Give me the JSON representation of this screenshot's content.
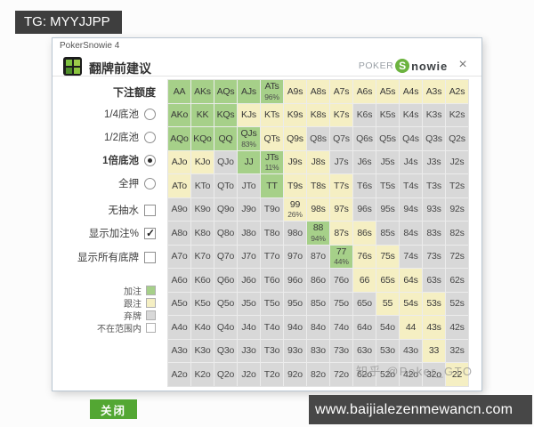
{
  "page": {
    "top_banner": "TG: MYYJJPP",
    "bottom_banner": "www.baijialezenmewancn.com",
    "watermark": "知乎 @Poker_GTO"
  },
  "window": {
    "title": "PokerSnowie 4",
    "dialog_title": "翻牌前建议",
    "logo": {
      "poker": "POKER",
      "s": "S",
      "nowie": "nowie"
    },
    "close_glyph": "×"
  },
  "sidebar": {
    "bet_header": "下注额度",
    "radios": [
      {
        "label": "1/4底池",
        "selected": false
      },
      {
        "label": "1/2底池",
        "selected": false
      },
      {
        "label": "1倍底池",
        "selected": true
      },
      {
        "label": "全押",
        "selected": false
      }
    ],
    "checkboxes": [
      {
        "label": "无抽水",
        "checked": false
      },
      {
        "label": "显示加注%",
        "checked": true
      },
      {
        "label": "显示所有底牌",
        "checked": false
      }
    ],
    "legend": [
      {
        "label": "加注",
        "color": "#a6d089"
      },
      {
        "label": "跟注",
        "color": "#f5efc3"
      },
      {
        "label": "弃牌",
        "color": "#d8d8d8"
      },
      {
        "label": "不在范围内",
        "color": "#ffffff"
      }
    ],
    "close_button": "关闭"
  },
  "colors": {
    "raise": "#a6d089",
    "call": "#f5efc3",
    "fold": "#d8d8d8",
    "accent_green": "#53a733"
  },
  "grid": {
    "actions": {
      "R": "raise",
      "C": "call",
      "F": "fold"
    },
    "rows": [
      [
        [
          "AA",
          "R"
        ],
        [
          "AKs",
          "R"
        ],
        [
          "AQs",
          "R"
        ],
        [
          "AJs",
          "R"
        ],
        [
          "ATs",
          "R",
          "96%"
        ],
        [
          "A9s",
          "C"
        ],
        [
          "A8s",
          "C"
        ],
        [
          "A7s",
          "C"
        ],
        [
          "A6s",
          "C"
        ],
        [
          "A5s",
          "C"
        ],
        [
          "A4s",
          "C"
        ],
        [
          "A3s",
          "C"
        ],
        [
          "A2s",
          "C"
        ]
      ],
      [
        [
          "AKo",
          "R"
        ],
        [
          "KK",
          "R"
        ],
        [
          "KQs",
          "R"
        ],
        [
          "KJs",
          "C"
        ],
        [
          "KTs",
          "C"
        ],
        [
          "K9s",
          "C"
        ],
        [
          "K8s",
          "C"
        ],
        [
          "K7s",
          "C"
        ],
        [
          "K6s",
          "F"
        ],
        [
          "K5s",
          "F"
        ],
        [
          "K4s",
          "F"
        ],
        [
          "K3s",
          "F"
        ],
        [
          "K2s",
          "F"
        ]
      ],
      [
        [
          "AQo",
          "R"
        ],
        [
          "KQo",
          "R"
        ],
        [
          "QQ",
          "R"
        ],
        [
          "QJs",
          "R",
          "83%"
        ],
        [
          "QTs",
          "C"
        ],
        [
          "Q9s",
          "C"
        ],
        [
          "Q8s",
          "F"
        ],
        [
          "Q7s",
          "F"
        ],
        [
          "Q6s",
          "F"
        ],
        [
          "Q5s",
          "F"
        ],
        [
          "Q4s",
          "F"
        ],
        [
          "Q3s",
          "F"
        ],
        [
          "Q2s",
          "F"
        ]
      ],
      [
        [
          "AJo",
          "C"
        ],
        [
          "KJo",
          "C"
        ],
        [
          "QJo",
          "F"
        ],
        [
          "JJ",
          "R"
        ],
        [
          "JTs",
          "R",
          "11%"
        ],
        [
          "J9s",
          "C"
        ],
        [
          "J8s",
          "C"
        ],
        [
          "J7s",
          "F"
        ],
        [
          "J6s",
          "F"
        ],
        [
          "J5s",
          "F"
        ],
        [
          "J4s",
          "F"
        ],
        [
          "J3s",
          "F"
        ],
        [
          "J2s",
          "F"
        ]
      ],
      [
        [
          "ATo",
          "C"
        ],
        [
          "KTo",
          "F"
        ],
        [
          "QTo",
          "F"
        ],
        [
          "JTo",
          "F"
        ],
        [
          "TT",
          "R"
        ],
        [
          "T9s",
          "C"
        ],
        [
          "T8s",
          "C"
        ],
        [
          "T7s",
          "C"
        ],
        [
          "T6s",
          "F"
        ],
        [
          "T5s",
          "F"
        ],
        [
          "T4s",
          "F"
        ],
        [
          "T3s",
          "F"
        ],
        [
          "T2s",
          "F"
        ]
      ],
      [
        [
          "A9o",
          "F"
        ],
        [
          "K9o",
          "F"
        ],
        [
          "Q9o",
          "F"
        ],
        [
          "J9o",
          "F"
        ],
        [
          "T9o",
          "F"
        ],
        [
          "99",
          "C",
          "26%"
        ],
        [
          "98s",
          "C"
        ],
        [
          "97s",
          "C"
        ],
        [
          "96s",
          "F"
        ],
        [
          "95s",
          "F"
        ],
        [
          "94s",
          "F"
        ],
        [
          "93s",
          "F"
        ],
        [
          "92s",
          "F"
        ]
      ],
      [
        [
          "A8o",
          "F"
        ],
        [
          "K8o",
          "F"
        ],
        [
          "Q8o",
          "F"
        ],
        [
          "J8o",
          "F"
        ],
        [
          "T8o",
          "F"
        ],
        [
          "98o",
          "F"
        ],
        [
          "88",
          "R",
          "94%"
        ],
        [
          "87s",
          "C"
        ],
        [
          "86s",
          "C"
        ],
        [
          "85s",
          "F"
        ],
        [
          "84s",
          "F"
        ],
        [
          "83s",
          "F"
        ],
        [
          "82s",
          "F"
        ]
      ],
      [
        [
          "A7o",
          "F"
        ],
        [
          "K7o",
          "F"
        ],
        [
          "Q7o",
          "F"
        ],
        [
          "J7o",
          "F"
        ],
        [
          "T7o",
          "F"
        ],
        [
          "97o",
          "F"
        ],
        [
          "87o",
          "F"
        ],
        [
          "77",
          "R",
          "44%"
        ],
        [
          "76s",
          "C"
        ],
        [
          "75s",
          "C"
        ],
        [
          "74s",
          "F"
        ],
        [
          "73s",
          "F"
        ],
        [
          "72s",
          "F"
        ]
      ],
      [
        [
          "A6o",
          "F"
        ],
        [
          "K6o",
          "F"
        ],
        [
          "Q6o",
          "F"
        ],
        [
          "J6o",
          "F"
        ],
        [
          "T6o",
          "F"
        ],
        [
          "96o",
          "F"
        ],
        [
          "86o",
          "F"
        ],
        [
          "76o",
          "F"
        ],
        [
          "66",
          "C"
        ],
        [
          "65s",
          "C"
        ],
        [
          "64s",
          "C"
        ],
        [
          "63s",
          "F"
        ],
        [
          "62s",
          "F"
        ]
      ],
      [
        [
          "A5o",
          "F"
        ],
        [
          "K5o",
          "F"
        ],
        [
          "Q5o",
          "F"
        ],
        [
          "J5o",
          "F"
        ],
        [
          "T5o",
          "F"
        ],
        [
          "95o",
          "F"
        ],
        [
          "85o",
          "F"
        ],
        [
          "75o",
          "F"
        ],
        [
          "65o",
          "F"
        ],
        [
          "55",
          "C"
        ],
        [
          "54s",
          "C"
        ],
        [
          "53s",
          "C"
        ],
        [
          "52s",
          "F"
        ]
      ],
      [
        [
          "A4o",
          "F"
        ],
        [
          "K4o",
          "F"
        ],
        [
          "Q4o",
          "F"
        ],
        [
          "J4o",
          "F"
        ],
        [
          "T4o",
          "F"
        ],
        [
          "94o",
          "F"
        ],
        [
          "84o",
          "F"
        ],
        [
          "74o",
          "F"
        ],
        [
          "64o",
          "F"
        ],
        [
          "54o",
          "F"
        ],
        [
          "44",
          "C"
        ],
        [
          "43s",
          "C"
        ],
        [
          "42s",
          "F"
        ]
      ],
      [
        [
          "A3o",
          "F"
        ],
        [
          "K3o",
          "F"
        ],
        [
          "Q3o",
          "F"
        ],
        [
          "J3o",
          "F"
        ],
        [
          "T3o",
          "F"
        ],
        [
          "93o",
          "F"
        ],
        [
          "83o",
          "F"
        ],
        [
          "73o",
          "F"
        ],
        [
          "63o",
          "F"
        ],
        [
          "53o",
          "F"
        ],
        [
          "43o",
          "F"
        ],
        [
          "33",
          "C"
        ],
        [
          "32s",
          "F"
        ]
      ],
      [
        [
          "A2o",
          "F"
        ],
        [
          "K2o",
          "F"
        ],
        [
          "Q2o",
          "F"
        ],
        [
          "J2o",
          "F"
        ],
        [
          "T2o",
          "F"
        ],
        [
          "92o",
          "F"
        ],
        [
          "82o",
          "F"
        ],
        [
          "72o",
          "F"
        ],
        [
          "62o",
          "F"
        ],
        [
          "52o",
          "F"
        ],
        [
          "42o",
          "F"
        ],
        [
          "32o",
          "F"
        ],
        [
          "22",
          "C"
        ]
      ]
    ]
  }
}
